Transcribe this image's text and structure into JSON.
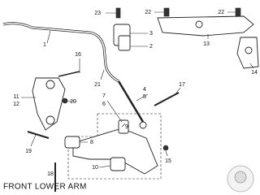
{
  "caption": "FRONT LOWER ARM",
  "callouts": [
    {
      "label": "23"
    },
    {
      "label": "3"
    },
    {
      "label": "2"
    },
    {
      "label": "1"
    },
    {
      "label": "16"
    },
    {
      "label": "21"
    },
    {
      "label": "22"
    },
    {
      "label": "22"
    },
    {
      "label": "13"
    },
    {
      "label": "14"
    },
    {
      "label": "11"
    },
    {
      "label": "12"
    },
    {
      "label": "20"
    },
    {
      "label": "19"
    },
    {
      "label": "7"
    },
    {
      "label": "6"
    },
    {
      "label": "4"
    },
    {
      "label": "5"
    },
    {
      "label": "17"
    },
    {
      "label": "9"
    },
    {
      "label": "8"
    },
    {
      "label": "10"
    },
    {
      "label": "18"
    },
    {
      "label": "15"
    }
  ]
}
